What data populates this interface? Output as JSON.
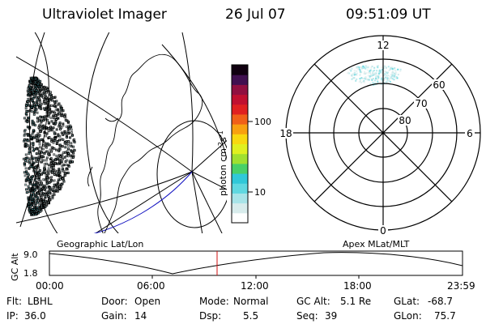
{
  "header": {
    "instrument": "Ultraviolet Imager",
    "date": "26 Jul 07",
    "time": "09:51:09 UT"
  },
  "geo_panel": {
    "label": "Geographic Lat/Lon"
  },
  "polar_panel": {
    "label": "Apex MLat/MLT",
    "mlt_labels": {
      "top": "12",
      "left": "18",
      "right": "6",
      "bottom": "0"
    },
    "lat_labels": [
      "60",
      "70",
      "80"
    ]
  },
  "colorbar": {
    "unit_label": "photon cm",
    "unit_sup1": "-2",
    "unit_mid": "s",
    "unit_sup2": "-1",
    "ticks": [
      "100",
      "10"
    ],
    "colors": [
      "#ffffff",
      "#d8ecec",
      "#a8e4e8",
      "#60d8e0",
      "#30c8d8",
      "#48d068",
      "#a0e030",
      "#e0f020",
      "#f8d810",
      "#f8a010",
      "#f06018",
      "#e02020",
      "#c01030",
      "#901040",
      "#401050",
      "#100010"
    ]
  },
  "timeline": {
    "axis_label": "GC Alt",
    "ytick_top": "9.0",
    "ytick_bottom": "1.8",
    "xticks": [
      "00:00",
      "06:00",
      "12:00",
      "18:00",
      "23:59"
    ],
    "current_time": "09:51"
  },
  "info": {
    "flt_label": "Flt:",
    "flt_value": "LBHL",
    "ip_label": "IP:",
    "ip_value": "36.0",
    "door_label": "Door:",
    "door_value": "Open",
    "gain_label": "Gain:",
    "gain_value": "14",
    "mode_label": "Mode:",
    "mode_value": "Normal",
    "dsp_label": "Dsp:",
    "dsp_value": "5.5",
    "gcalt_label": "GC Alt:",
    "gcalt_value": "5.1 Re",
    "seq_label": "Seq:",
    "seq_value": "39",
    "glat_label": "GLat:",
    "glat_value": "-68.7",
    "glon_label": "GLon:",
    "glon_value": "75.7"
  }
}
